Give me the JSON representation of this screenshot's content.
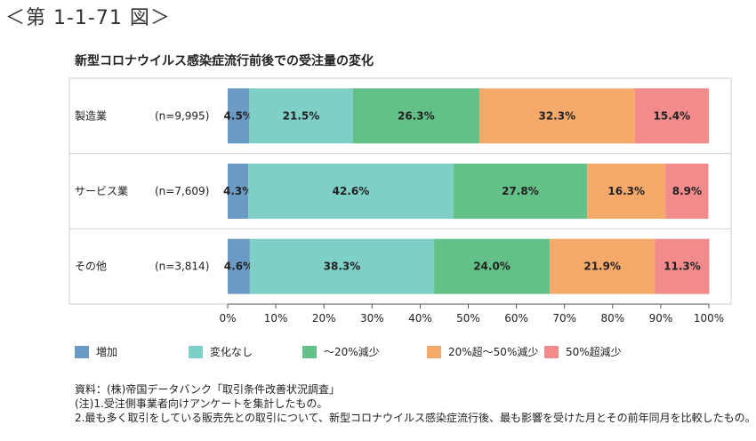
{
  "figure_number": "＜第 1-1-71 図＞",
  "chart_data": {
    "type": "bar",
    "orientation": "horizontal-stacked",
    "title": "新型コロナウイルス感染症流行前後での受注量の変化",
    "categories": [
      "製造業",
      "サービス業",
      "その他"
    ],
    "sample_sizes": [
      "(n=9,995)",
      "(n=7,609)",
      "(n=3,814)"
    ],
    "series": [
      {
        "name": "増加",
        "color": "#6b9ac4",
        "values": [
          4.5,
          4.3,
          4.6
        ]
      },
      {
        "name": "変化なし",
        "color": "#7ecfc6",
        "values": [
          21.5,
          42.6,
          38.3
        ]
      },
      {
        "name": "～20%減少",
        "color": "#63c086",
        "values": [
          26.3,
          27.8,
          24.0
        ]
      },
      {
        "name": "20%超～50%減少",
        "color": "#f5a96b",
        "values": [
          32.3,
          16.3,
          21.9
        ]
      },
      {
        "name": "50%超減少",
        "color": "#f28b8b",
        "values": [
          15.4,
          8.9,
          11.3
        ]
      }
    ],
    "data_labels": [
      [
        "4.5%",
        "21.5%",
        "26.3%",
        "32.3%",
        "15.4%"
      ],
      [
        "4.3%",
        "42.6%",
        "27.8%",
        "16.3%",
        "8.9%"
      ],
      [
        "4.6%",
        "38.3%",
        "24.0%",
        "21.9%",
        "11.3%"
      ]
    ],
    "xticks": [
      "0%",
      "10%",
      "20%",
      "30%",
      "40%",
      "50%",
      "60%",
      "70%",
      "80%",
      "90%",
      "100%"
    ],
    "xlim": [
      0,
      100
    ],
    "grid": false,
    "legend_position": "bottom"
  },
  "notes": [
    "資料：(株)帝国データバンク「取引条件改善状況調査」",
    "(注)1.受注側事業者向けアンケートを集計したもの。",
    "2.最も多く取引をしている販売先との取引について、新型コロナウイルス感染症流行後、最も影響を受けた月とその前年同月を比較したもの。"
  ]
}
